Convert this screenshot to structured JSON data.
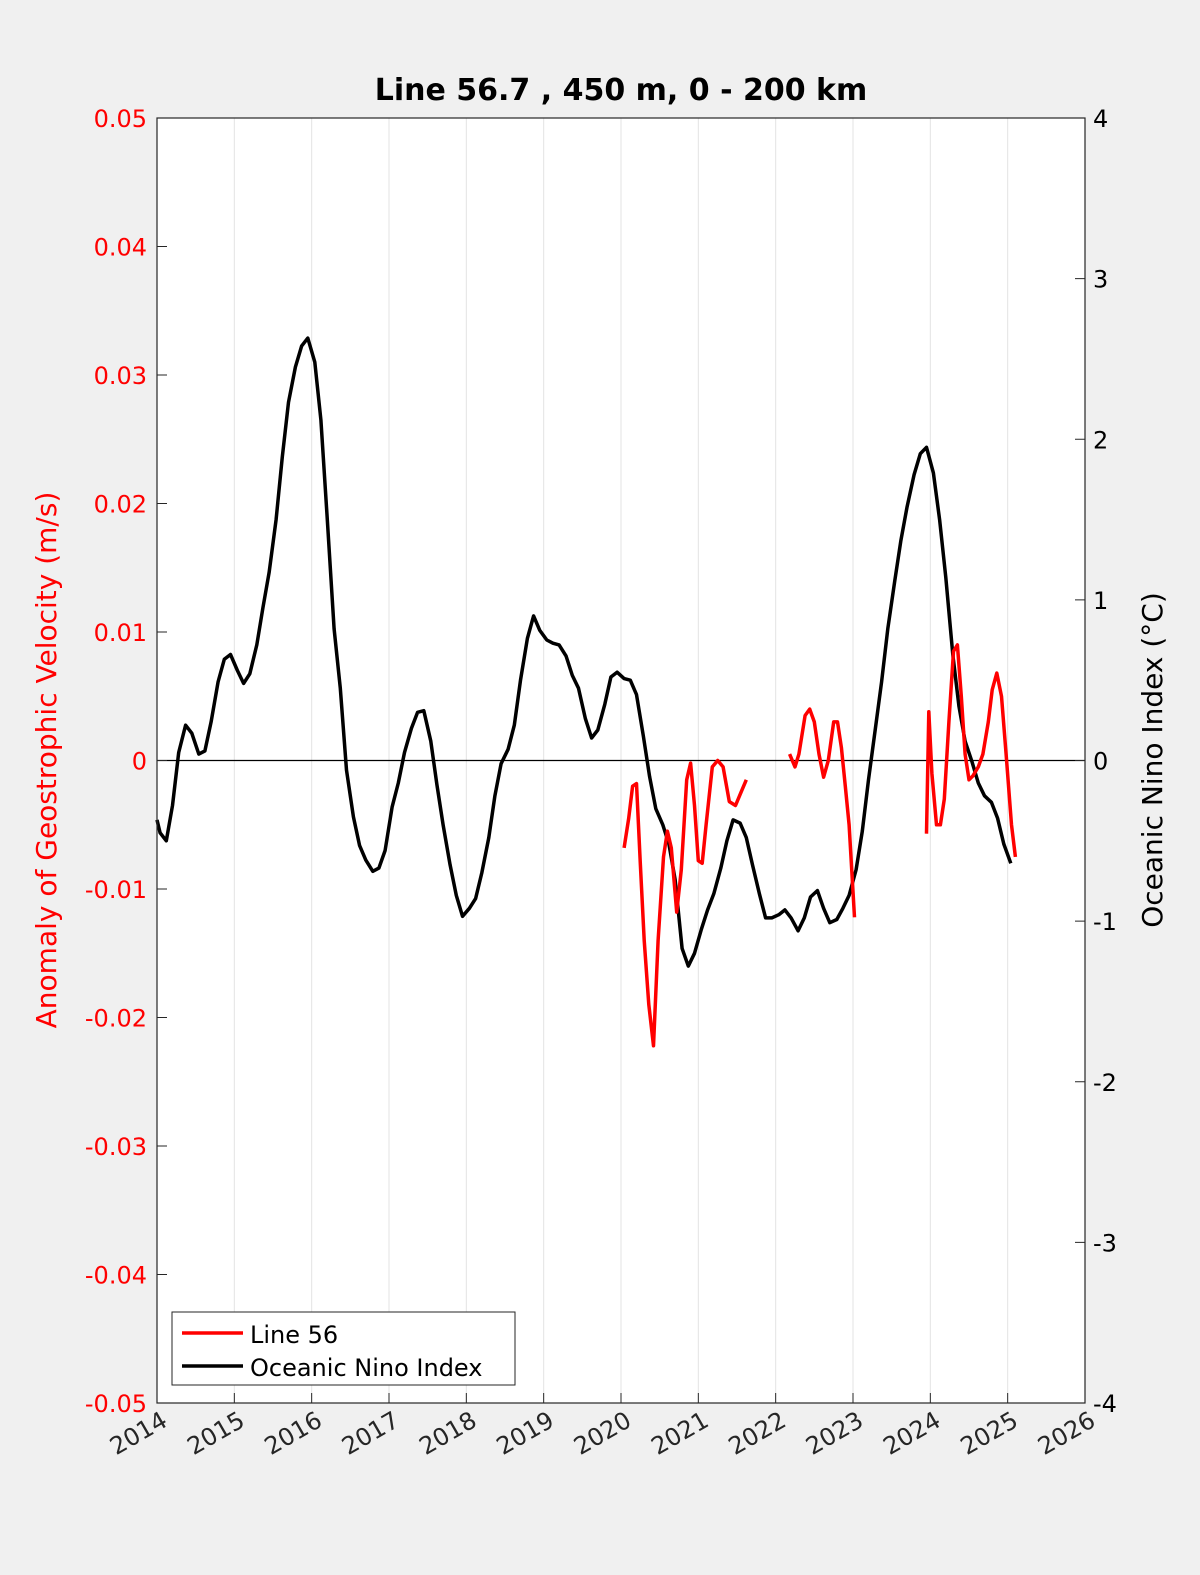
{
  "chart_data": {
    "type": "line",
    "title": "Line 56.7 , 450 m, 0 - 200 km",
    "xlabel": "",
    "ylabel_left": "Anomaly of Geostrophic Velocity (m/s)",
    "ylabel_right": "Oceanic Nino Index (°C)",
    "xlim": [
      2014,
      2026
    ],
    "ylim_left": [
      -0.05,
      0.05
    ],
    "ylim_right": [
      -4,
      4
    ],
    "x_ticks": [
      "2014",
      "2015",
      "2016",
      "2017",
      "2018",
      "2019",
      "2020",
      "2021",
      "2022",
      "2023",
      "2024",
      "2025",
      "2026"
    ],
    "y_ticks_left": [
      "0.05",
      "0.04",
      "0.03",
      "0.02",
      "0.01",
      "0",
      "-0.01",
      "-0.02",
      "-0.03",
      "-0.04",
      "-0.05"
    ],
    "y_ticks_right": [
      "4",
      "3",
      "2",
      "1",
      "0",
      "-1",
      "-2",
      "-3",
      "-4"
    ],
    "grid": "vertical",
    "legend_position": "bottom-left",
    "colors": {
      "line56": "#ff0000",
      "oni": "#000000",
      "left_axis": "#ff0000",
      "right_axis": "#000000"
    },
    "series": [
      {
        "name": "Line 56",
        "axis": "left",
        "color": "#ff0000",
        "segments": [
          [
            [
              2020.04,
              -0.0068
            ],
            [
              2020.1,
              -0.0045
            ],
            [
              2020.15,
              -0.002
            ],
            [
              2020.2,
              -0.0018
            ],
            [
              2020.25,
              -0.008
            ],
            [
              2020.3,
              -0.014
            ],
            [
              2020.36,
              -0.019
            ],
            [
              2020.42,
              -0.0222
            ],
            [
              2020.48,
              -0.014
            ],
            [
              2020.55,
              -0.0075
            ],
            [
              2020.6,
              -0.0055
            ],
            [
              2020.65,
              -0.0068
            ],
            [
              2020.72,
              -0.0118
            ],
            [
              2020.78,
              -0.0085
            ],
            [
              2020.85,
              -0.0015
            ],
            [
              2020.9,
              -0.0002
            ],
            [
              2020.95,
              -0.0035
            ],
            [
              2021.0,
              -0.0078
            ],
            [
              2021.05,
              -0.008
            ],
            [
              2021.1,
              -0.005
            ],
            [
              2021.18,
              -0.0005
            ],
            [
              2021.25,
              0.0
            ],
            [
              2021.32,
              -0.0005
            ],
            [
              2021.4,
              -0.0032
            ],
            [
              2021.48,
              -0.0035
            ],
            [
              2021.55,
              -0.0025
            ],
            [
              2021.62,
              -0.0015
            ]
          ],
          [
            [
              2022.18,
              0.0005
            ],
            [
              2022.25,
              -0.0005
            ],
            [
              2022.3,
              0.0005
            ],
            [
              2022.38,
              0.0035
            ],
            [
              2022.44,
              0.004
            ],
            [
              2022.5,
              0.003
            ],
            [
              2022.56,
              0.0005
            ],
            [
              2022.62,
              -0.0013
            ],
            [
              2022.68,
              0.0
            ],
            [
              2022.75,
              0.003
            ],
            [
              2022.8,
              0.003
            ],
            [
              2022.85,
              0.001
            ],
            [
              2022.9,
              -0.002
            ],
            [
              2022.95,
              -0.005
            ],
            [
              2023.02,
              -0.0122
            ]
          ],
          [
            [
              2023.95,
              -0.0057
            ],
            [
              2023.98,
              0.0038
            ],
            [
              2024.02,
              -0.001
            ],
            [
              2024.08,
              -0.005
            ],
            [
              2024.13,
              -0.005
            ],
            [
              2024.18,
              -0.003
            ],
            [
              2024.24,
              0.003
            ],
            [
              2024.3,
              0.0085
            ],
            [
              2024.35,
              0.009
            ],
            [
              2024.4,
              0.005
            ],
            [
              2024.45,
              0.0005
            ],
            [
              2024.5,
              -0.0015
            ],
            [
              2024.55,
              -0.0012
            ],
            [
              2024.62,
              -0.0005
            ],
            [
              2024.68,
              0.0005
            ],
            [
              2024.75,
              0.003
            ],
            [
              2024.8,
              0.0055
            ],
            [
              2024.86,
              0.0068
            ],
            [
              2024.92,
              0.005
            ],
            [
              2024.98,
              0.0005
            ],
            [
              2025.05,
              -0.005
            ],
            [
              2025.1,
              -0.0075
            ]
          ]
        ]
      },
      {
        "name": "Oceanic Nino Index",
        "axis": "right",
        "color": "#000000",
        "points": [
          [
            2014.0,
            -0.37
          ],
          [
            2014.04,
            -0.45
          ],
          [
            2014.12,
            -0.5
          ],
          [
            2014.2,
            -0.28
          ],
          [
            2014.28,
            0.05
          ],
          [
            2014.37,
            0.22
          ],
          [
            2014.45,
            0.17
          ],
          [
            2014.54,
            0.04
          ],
          [
            2014.62,
            0.06
          ],
          [
            2014.7,
            0.24
          ],
          [
            2014.79,
            0.49
          ],
          [
            2014.87,
            0.63
          ],
          [
            2014.95,
            0.66
          ],
          [
            2015.04,
            0.56
          ],
          [
            2015.12,
            0.48
          ],
          [
            2015.2,
            0.54
          ],
          [
            2015.29,
            0.72
          ],
          [
            2015.37,
            0.95
          ],
          [
            2015.45,
            1.17
          ],
          [
            2015.54,
            1.5
          ],
          [
            2015.62,
            1.89
          ],
          [
            2015.7,
            2.23
          ],
          [
            2015.79,
            2.45
          ],
          [
            2015.87,
            2.58
          ],
          [
            2015.95,
            2.63
          ],
          [
            2016.04,
            2.48
          ],
          [
            2016.12,
            2.12
          ],
          [
            2016.2,
            1.52
          ],
          [
            2016.29,
            0.82
          ],
          [
            2016.37,
            0.45
          ],
          [
            2016.45,
            -0.06
          ],
          [
            2016.54,
            -0.35
          ],
          [
            2016.62,
            -0.53
          ],
          [
            2016.7,
            -0.62
          ],
          [
            2016.79,
            -0.69
          ],
          [
            2016.87,
            -0.67
          ],
          [
            2016.95,
            -0.56
          ],
          [
            2017.04,
            -0.29
          ],
          [
            2017.12,
            -0.14
          ],
          [
            2017.2,
            0.05
          ],
          [
            2017.29,
            0.2
          ],
          [
            2017.37,
            0.3
          ],
          [
            2017.45,
            0.31
          ],
          [
            2017.54,
            0.12
          ],
          [
            2017.62,
            -0.15
          ],
          [
            2017.7,
            -0.4
          ],
          [
            2017.79,
            -0.65
          ],
          [
            2017.87,
            -0.84
          ],
          [
            2017.95,
            -0.97
          ],
          [
            2018.04,
            -0.92
          ],
          [
            2018.12,
            -0.86
          ],
          [
            2018.2,
            -0.7
          ],
          [
            2018.29,
            -0.48
          ],
          [
            2018.37,
            -0.22
          ],
          [
            2018.45,
            -0.02
          ],
          [
            2018.54,
            0.07
          ],
          [
            2018.62,
            0.22
          ],
          [
            2018.7,
            0.5
          ],
          [
            2018.79,
            0.76
          ],
          [
            2018.87,
            0.9
          ],
          [
            2018.95,
            0.81
          ],
          [
            2019.04,
            0.75
          ],
          [
            2019.12,
            0.73
          ],
          [
            2019.2,
            0.72
          ],
          [
            2019.29,
            0.65
          ],
          [
            2019.37,
            0.53
          ],
          [
            2019.45,
            0.45
          ],
          [
            2019.54,
            0.26
          ],
          [
            2019.62,
            0.14
          ],
          [
            2019.7,
            0.19
          ],
          [
            2019.79,
            0.35
          ],
          [
            2019.87,
            0.52
          ],
          [
            2019.95,
            0.55
          ],
          [
            2020.04,
            0.51
          ],
          [
            2020.12,
            0.5
          ],
          [
            2020.2,
            0.41
          ],
          [
            2020.29,
            0.15
          ],
          [
            2020.37,
            -0.1
          ],
          [
            2020.45,
            -0.3
          ],
          [
            2020.54,
            -0.4
          ],
          [
            2020.62,
            -0.52
          ],
          [
            2020.7,
            -0.74
          ],
          [
            2020.79,
            -1.17
          ],
          [
            2020.87,
            -1.28
          ],
          [
            2020.95,
            -1.2
          ],
          [
            2021.04,
            -1.05
          ],
          [
            2021.12,
            -0.93
          ],
          [
            2021.2,
            -0.83
          ],
          [
            2021.29,
            -0.67
          ],
          [
            2021.37,
            -0.5
          ],
          [
            2021.45,
            -0.37
          ],
          [
            2021.54,
            -0.39
          ],
          [
            2021.62,
            -0.48
          ],
          [
            2021.7,
            -0.65
          ],
          [
            2021.79,
            -0.83
          ],
          [
            2021.87,
            -0.98
          ],
          [
            2021.95,
            -0.98
          ],
          [
            2022.04,
            -0.96
          ],
          [
            2022.12,
            -0.93
          ],
          [
            2022.2,
            -0.98
          ],
          [
            2022.29,
            -1.06
          ],
          [
            2022.37,
            -0.98
          ],
          [
            2022.45,
            -0.85
          ],
          [
            2022.54,
            -0.81
          ],
          [
            2022.62,
            -0.92
          ],
          [
            2022.7,
            -1.01
          ],
          [
            2022.79,
            -0.99
          ],
          [
            2022.87,
            -0.92
          ],
          [
            2022.95,
            -0.84
          ],
          [
            2023.04,
            -0.68
          ],
          [
            2023.12,
            -0.44
          ],
          [
            2023.2,
            -0.12
          ],
          [
            2023.29,
            0.2
          ],
          [
            2023.37,
            0.49
          ],
          [
            2023.45,
            0.82
          ],
          [
            2023.54,
            1.12
          ],
          [
            2023.62,
            1.37
          ],
          [
            2023.7,
            1.58
          ],
          [
            2023.79,
            1.78
          ],
          [
            2023.87,
            1.91
          ],
          [
            2023.95,
            1.95
          ],
          [
            2024.04,
            1.79
          ],
          [
            2024.12,
            1.5
          ],
          [
            2024.2,
            1.14
          ],
          [
            2024.29,
            0.66
          ],
          [
            2024.37,
            0.34
          ],
          [
            2024.45,
            0.12
          ],
          [
            2024.54,
            -0.01
          ],
          [
            2024.62,
            -0.14
          ],
          [
            2024.7,
            -0.22
          ],
          [
            2024.79,
            -0.26
          ],
          [
            2024.87,
            -0.36
          ],
          [
            2024.95,
            -0.52
          ],
          [
            2025.04,
            -0.64
          ]
        ]
      }
    ]
  }
}
